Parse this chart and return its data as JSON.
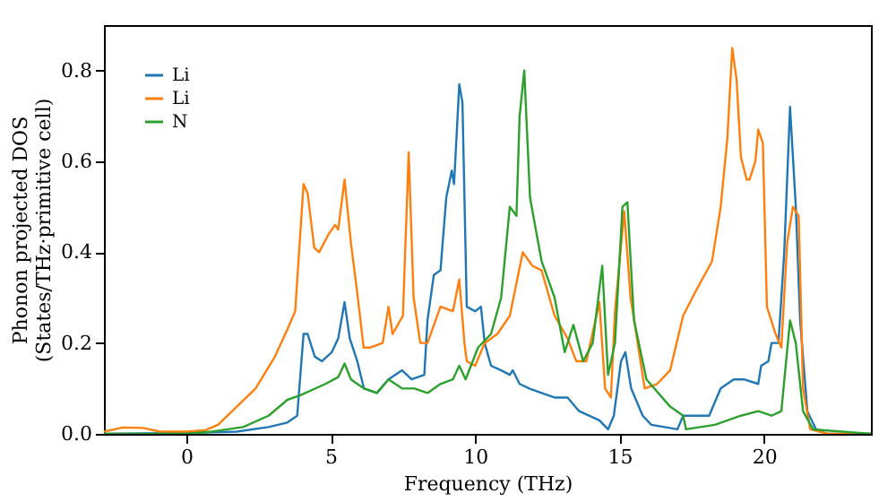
{
  "chart_data": {
    "type": "line",
    "xlabel": "Frequency (THz)",
    "ylabel": "Phonon projected DOS\n(States/THz·primitive cell)",
    "xlim": [
      -2.85,
      23.7
    ],
    "ylim": [
      0,
      0.9
    ],
    "xticks": [
      0,
      5,
      10,
      15,
      20
    ],
    "yticks": [
      {
        "value": 0,
        "label": "0.0"
      },
      {
        "value": 0.2,
        "label": "0.2"
      },
      {
        "value": 0.4,
        "label": "0.4"
      },
      {
        "value": 0.6,
        "label": "0.6"
      },
      {
        "value": 0.8,
        "label": "0.8"
      }
    ],
    "grid": false,
    "legend": "top left",
    "marker": "none",
    "line_style": "solid",
    "series": [
      {
        "name": "Li",
        "color": "#1f77b4",
        "x": [
          -2.85,
          0,
          1.75,
          2.85,
          3.5,
          3.84,
          4.06,
          4.2,
          4.45,
          4.7,
          5.04,
          5.26,
          5.48,
          5.66,
          5.92,
          6.15,
          6.6,
          7.0,
          7.47,
          7.8,
          8.24,
          8.35,
          8.57,
          8.8,
          9.0,
          9.19,
          9.27,
          9.45,
          9.56,
          9.71,
          10.0,
          10.2,
          10.33,
          10.55,
          10.9,
          11.2,
          11.3,
          11.54,
          11.87,
          12.3,
          12.75,
          13.2,
          13.6,
          14.3,
          14.6,
          14.8,
          15.05,
          15.2,
          15.4,
          15.8,
          16.1,
          17.0,
          17.2,
          18.1,
          18.3,
          18.5,
          18.95,
          19.3,
          19.8,
          19.9,
          20.15,
          20.26,
          20.5,
          20.7,
          20.9,
          21.1,
          21.25,
          21.5,
          21.8,
          22.2,
          23.7
        ],
        "values": [
          0,
          0.002,
          0.005,
          0.015,
          0.025,
          0.04,
          0.22,
          0.22,
          0.17,
          0.16,
          0.18,
          0.21,
          0.29,
          0.21,
          0.16,
          0.1,
          0.09,
          0.12,
          0.14,
          0.12,
          0.13,
          0.25,
          0.35,
          0.36,
          0.52,
          0.58,
          0.55,
          0.77,
          0.73,
          0.28,
          0.27,
          0.28,
          0.2,
          0.15,
          0.14,
          0.13,
          0.14,
          0.11,
          0.1,
          0.09,
          0.08,
          0.08,
          0.05,
          0.03,
          0.01,
          0.04,
          0.16,
          0.18,
          0.1,
          0.04,
          0.02,
          0.01,
          0.04,
          0.04,
          0.07,
          0.1,
          0.12,
          0.12,
          0.11,
          0.15,
          0.16,
          0.2,
          0.2,
          0.4,
          0.72,
          0.5,
          0.25,
          0.05,
          0.01,
          0,
          0
        ]
      },
      {
        "name": "Li",
        "color": "#ff7f0e",
        "x": [
          -2.85,
          -2.2,
          -1.5,
          -0.9,
          0,
          0.66,
          1.1,
          1.75,
          2.4,
          3.07,
          3.5,
          3.77,
          4.06,
          4.2,
          4.43,
          4.6,
          4.93,
          5.15,
          5.26,
          5.48,
          5.7,
          5.92,
          6.14,
          6.37,
          6.8,
          7.0,
          7.14,
          7.5,
          7.7,
          7.87,
          8.1,
          8.35,
          8.8,
          9.23,
          9.45,
          9.63,
          9.71,
          10.0,
          10.33,
          10.77,
          11.2,
          11.65,
          11.98,
          12.3,
          12.75,
          13.2,
          13.5,
          13.85,
          14.3,
          14.5,
          14.7,
          14.84,
          15.16,
          15.38,
          15.87,
          16.3,
          16.75,
          17.2,
          17.6,
          18.2,
          18.5,
          18.73,
          18.9,
          19.05,
          19.2,
          19.4,
          19.5,
          19.7,
          19.8,
          19.96,
          20.1,
          20.4,
          20.6,
          20.8,
          21.0,
          21.2,
          21.35,
          21.6,
          22.2,
          23.7
        ],
        "values": [
          0.005,
          0.014,
          0.013,
          0.005,
          0.005,
          0.008,
          0.02,
          0.06,
          0.1,
          0.17,
          0.23,
          0.27,
          0.55,
          0.53,
          0.41,
          0.4,
          0.44,
          0.46,
          0.45,
          0.56,
          0.42,
          0.31,
          0.19,
          0.19,
          0.2,
          0.28,
          0.22,
          0.26,
          0.62,
          0.3,
          0.2,
          0.2,
          0.28,
          0.27,
          0.34,
          0.2,
          0.16,
          0.15,
          0.2,
          0.22,
          0.26,
          0.4,
          0.37,
          0.36,
          0.26,
          0.21,
          0.16,
          0.16,
          0.29,
          0.1,
          0.08,
          0.27,
          0.49,
          0.3,
          0.1,
          0.11,
          0.14,
          0.26,
          0.31,
          0.38,
          0.5,
          0.65,
          0.85,
          0.78,
          0.61,
          0.56,
          0.56,
          0.6,
          0.67,
          0.64,
          0.28,
          0.22,
          0.19,
          0.42,
          0.5,
          0.48,
          0.1,
          0.01,
          0,
          0
        ]
      },
      {
        "name": "N",
        "color": "#2ca02c",
        "x": [
          -2.85,
          0,
          0.88,
          1.97,
          2.85,
          3.5,
          3.95,
          4.82,
          5.26,
          5.48,
          5.7,
          5.92,
          6.15,
          6.6,
          7.0,
          7.47,
          7.9,
          8.35,
          8.8,
          9.23,
          9.45,
          9.67,
          10.1,
          10.55,
          10.9,
          11.2,
          11.43,
          11.54,
          11.7,
          11.9,
          12.3,
          12.75,
          13.1,
          13.4,
          13.74,
          14.07,
          14.4,
          14.6,
          14.84,
          15.1,
          15.27,
          15.5,
          15.93,
          16.75,
          17.2,
          17.3,
          18.3,
          19.2,
          19.8,
          20.26,
          20.6,
          20.9,
          21.1,
          21.35,
          21.7,
          23.7
        ],
        "values": [
          0,
          0,
          0.005,
          0.015,
          0.04,
          0.075,
          0.085,
          0.11,
          0.125,
          0.155,
          0.12,
          0.11,
          0.1,
          0.09,
          0.12,
          0.1,
          0.1,
          0.09,
          0.11,
          0.12,
          0.15,
          0.12,
          0.19,
          0.22,
          0.3,
          0.5,
          0.48,
          0.7,
          0.8,
          0.52,
          0.38,
          0.3,
          0.18,
          0.24,
          0.16,
          0.2,
          0.37,
          0.13,
          0.2,
          0.5,
          0.51,
          0.25,
          0.12,
          0.06,
          0.04,
          0.01,
          0.02,
          0.04,
          0.05,
          0.04,
          0.05,
          0.25,
          0.2,
          0.05,
          0.01,
          0
        ]
      }
    ]
  }
}
